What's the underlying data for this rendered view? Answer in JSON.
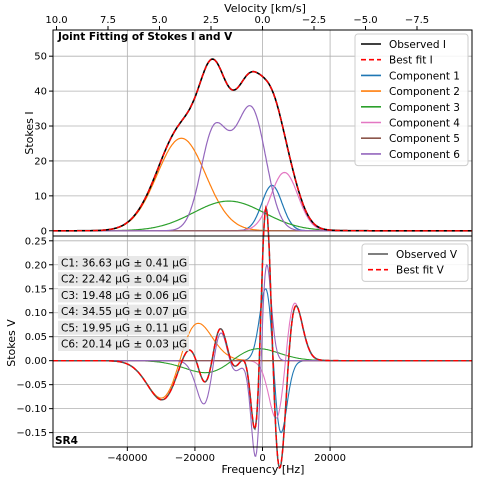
{
  "chart_data": [
    {
      "type": "line",
      "title": "Joint Fitting of Stokes I and V",
      "xlabel": "",
      "ylabel": "Stokes I",
      "xlim": [
        -62000,
        62000
      ],
      "ylim": [
        -1.5,
        57.5
      ],
      "grid": true,
      "legend_position": "top-right",
      "top_axis": {
        "label": "Velocity [km/s]",
        "ticks": [
          "10.0",
          "7.5",
          "5.0",
          "2.5",
          "0.0",
          "−2.5",
          "−5.0",
          "−7.5"
        ]
      },
      "y_ticks": [
        "0",
        "10",
        "20",
        "30",
        "40",
        "50"
      ],
      "series": [
        {
          "name": "Observed I",
          "color": "#000000",
          "style": "solid"
        },
        {
          "name": "Best fit I",
          "color": "#ff0000",
          "style": "dashed"
        },
        {
          "name": "Component 1",
          "color": "#1f77b4",
          "style": "solid",
          "peak_x": 2800,
          "peak_y": 13.0
        },
        {
          "name": "Component 2",
          "color": "#ff7f0e",
          "style": "solid",
          "peak_x": -24000,
          "peak_y": 26.5
        },
        {
          "name": "Component 3",
          "color": "#2ca02c",
          "style": "solid",
          "peak_x": -10000,
          "peak_y": 8.5
        },
        {
          "name": "Component 4",
          "color": "#e377c2",
          "style": "solid",
          "peak_x": 6500,
          "peak_y": 16.7
        },
        {
          "name": "Component 5",
          "color": "#8c564b",
          "style": "solid",
          "peak_x": 0,
          "peak_y": 0.0
        },
        {
          "name": "Component 6",
          "color": "#9467bd",
          "style": "solid",
          "peak_x": -14000,
          "peak_y": 32.5,
          "peak2_x": -3200,
          "peak2_y": 37.8
        }
      ],
      "observed_peaks": [
        {
          "x": -13800,
          "y": 54.5
        },
        {
          "x": -7700,
          "y": 36.8
        },
        {
          "x": -700,
          "y": 50.2
        }
      ]
    },
    {
      "type": "line",
      "title": "",
      "xlabel": "Frequency [Hz]",
      "ylabel": "Stokes V",
      "xlim": [
        -62000,
        62000
      ],
      "ylim": [
        -0.18,
        0.26
      ],
      "grid": true,
      "legend_position": "top-right",
      "x_ticks": [
        "−40000",
        "−20000",
        "0",
        "20000"
      ],
      "y_ticks": [
        "−0.15",
        "−0.10",
        "−0.05",
        "0.00",
        "0.05",
        "0.10",
        "0.15",
        "0.20",
        "0.25"
      ],
      "series": [
        {
          "name": "Observed V",
          "color": "#555555",
          "style": "solid"
        },
        {
          "name": "Best fit V",
          "color": "#ff0000",
          "style": "dashed"
        }
      ],
      "panel_label": "SR4",
      "fit_results": [
        "C1: 36.63 μG ± 0.41 μG",
        "C2: 22.42 μG ± 0.04 μG",
        "C3: 19.48 μG ± 0.06 μG",
        "C4: 34.55 μG ± 0.07 μG",
        "C5: 19.95 μG ± 0.11 μG",
        "C6: 20.14 μG ± 0.03 μG"
      ]
    }
  ]
}
